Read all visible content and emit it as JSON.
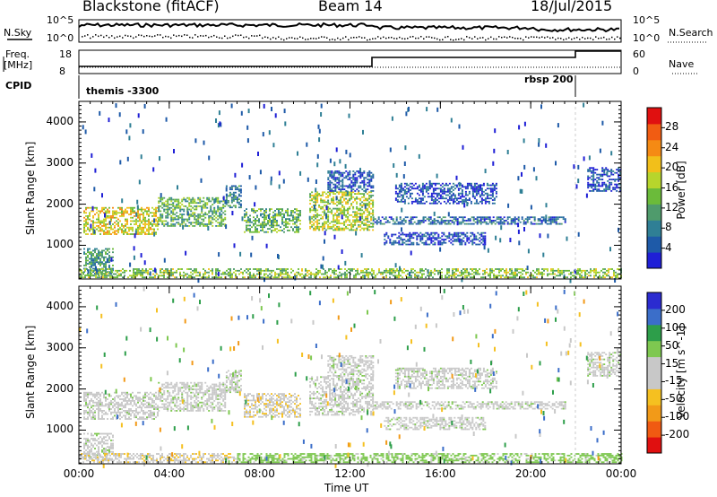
{
  "header": {
    "station": "Blackstone (fitACF)",
    "beam": "Beam 14",
    "date": "18/Jul/2015"
  },
  "top_panels": {
    "nsky_label": "N.Sky",
    "nsky_ticks": [
      "10^5",
      "10^0"
    ],
    "nsky_right_ticks": [
      "10^5",
      "10^0"
    ],
    "nsearch_label": "N.Search",
    "freq_label_1": "Freq.",
    "freq_label_2": "[MHz]",
    "freq_ticks": [
      "18",
      "8"
    ],
    "nave_label": "Nave",
    "nave_ticks": [
      "60",
      "0"
    ],
    "cpid_label": "CPID",
    "cpid_segments": [
      {
        "label": "themis -3300",
        "start_hour": 0,
        "end_hour": 21.8
      },
      {
        "label": "rbsp 200",
        "start_hour": 21.8,
        "end_hour": 24
      }
    ]
  },
  "chart_data": [
    {
      "type": "heatmap",
      "panel": "power",
      "ylabel": "Slant Range [km]",
      "xlabel": "",
      "ylim": [
        180,
        4500
      ],
      "yticks": [
        1000,
        2000,
        3000,
        4000
      ],
      "xlim": [
        0,
        24
      ],
      "colorbar_label": "Power [dB]",
      "colorbar_ticks": [
        28,
        24,
        20,
        16,
        12,
        8,
        4
      ],
      "colors": [
        "#1f1fd6",
        "#1e5aa8",
        "#2f7f95",
        "#4f9b6c",
        "#6bbb3a",
        "#b7d52c",
        "#f2bf1a",
        "#f58a14",
        "#f15c12",
        "#e01010"
      ],
      "regions": [
        {
          "t0": 0.2,
          "t1": 3.5,
          "r0": 1250,
          "r1": 1900,
          "value": 20
        },
        {
          "t0": 3.5,
          "t1": 6.5,
          "r0": 1450,
          "r1": 2150,
          "value": 14
        },
        {
          "t0": 6.5,
          "t1": 7.2,
          "r0": 1900,
          "r1": 2450,
          "value": 10
        },
        {
          "t0": 7.3,
          "t1": 9.8,
          "r0": 1300,
          "r1": 1900,
          "value": 14
        },
        {
          "t0": 10.2,
          "t1": 13.0,
          "r0": 1350,
          "r1": 2300,
          "value": 18
        },
        {
          "t0": 0.2,
          "t1": 1.5,
          "r0": 250,
          "r1": 900,
          "value": 12
        },
        {
          "t0": 0.0,
          "t1": 24.0,
          "r0": 200,
          "r1": 420,
          "value": 16
        },
        {
          "t0": 13.0,
          "t1": 21.5,
          "r0": 1500,
          "r1": 1700,
          "value": 8
        },
        {
          "t0": 13.5,
          "t1": 18.0,
          "r0": 1000,
          "r1": 1300,
          "value": 6
        },
        {
          "t0": 14.0,
          "t1": 18.5,
          "r0": 2000,
          "r1": 2500,
          "value": 6
        },
        {
          "t0": 11.0,
          "t1": 13.0,
          "r0": 2300,
          "r1": 2800,
          "value": 6
        },
        {
          "t0": 22.5,
          "t1": 24.0,
          "r0": 2300,
          "r1": 2900,
          "value": 6
        }
      ]
    },
    {
      "type": "heatmap",
      "panel": "velocity",
      "ylabel": "Slant Range [km]",
      "xlabel": "Time UT",
      "ylim": [
        180,
        4500
      ],
      "yticks": [
        1000,
        2000,
        3000,
        4000
      ],
      "xlim": [
        0,
        24
      ],
      "xticks": [
        "00:00",
        "04:00",
        "08:00",
        "12:00",
        "16:00",
        "20:00",
        "00:00"
      ],
      "colorbar_label": "Velocity [m s^-1]",
      "colorbar_ticks": [
        200,
        100,
        50,
        15,
        -15,
        -50,
        -100,
        -200
      ],
      "colors": [
        "#e01010",
        "#f05a12",
        "#f29a18",
        "#f5c020",
        "#c8c8c8",
        "#c8c8c8",
        "#7ec850",
        "#2d9e4a",
        "#3b6ec9",
        "#2b2bd0"
      ],
      "regions": [
        {
          "t0": 0.2,
          "t1": 3.5,
          "r0": 1250,
          "r1": 1900,
          "value": 0
        },
        {
          "t0": 3.5,
          "t1": 6.5,
          "r0": 1450,
          "r1": 2150,
          "value": 0
        },
        {
          "t0": 6.5,
          "t1": 7.2,
          "r0": 1900,
          "r1": 2450,
          "value": 0
        },
        {
          "t0": 7.3,
          "t1": 9.8,
          "r0": 1300,
          "r1": 1900,
          "value": -40
        },
        {
          "t0": 10.2,
          "t1": 13.0,
          "r0": 1350,
          "r1": 2300,
          "value": 0
        },
        {
          "t0": 0.2,
          "t1": 1.5,
          "r0": 250,
          "r1": 900,
          "value": 0
        },
        {
          "t0": 0.0,
          "t1": 7.0,
          "r0": 200,
          "r1": 420,
          "value": -40
        },
        {
          "t0": 7.0,
          "t1": 24.0,
          "r0": 200,
          "r1": 420,
          "value": 30
        },
        {
          "t0": 13.0,
          "t1": 21.5,
          "r0": 1500,
          "r1": 1700,
          "value": 0
        },
        {
          "t0": 13.5,
          "t1": 18.0,
          "r0": 1000,
          "r1": 1300,
          "value": 0
        },
        {
          "t0": 14.0,
          "t1": 18.5,
          "r0": 2000,
          "r1": 2500,
          "value": 0
        },
        {
          "t0": 11.0,
          "t1": 13.0,
          "r0": 2300,
          "r1": 2800,
          "value": 0
        },
        {
          "t0": 22.5,
          "t1": 24.0,
          "r0": 2300,
          "r1": 2900,
          "value": 0
        }
      ]
    }
  ]
}
